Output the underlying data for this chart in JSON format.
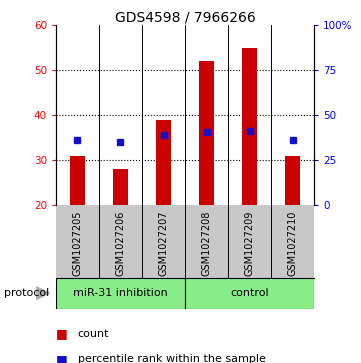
{
  "title": "GDS4598 / 7966266",
  "samples": [
    "GSM1027205",
    "GSM1027206",
    "GSM1027207",
    "GSM1027208",
    "GSM1027209",
    "GSM1027210"
  ],
  "counts": [
    31,
    28,
    39,
    52,
    55,
    31
  ],
  "percentile_ranks": [
    36,
    35,
    39,
    40.5,
    41,
    36
  ],
  "ylim_left": [
    20,
    60
  ],
  "ylim_right": [
    0,
    100
  ],
  "yticks_left": [
    20,
    30,
    40,
    50,
    60
  ],
  "yticks_right": [
    0,
    25,
    50,
    75,
    100
  ],
  "ytick_labels_right": [
    "0",
    "25",
    "50",
    "75",
    "100%"
  ],
  "bar_color": "#cc0000",
  "dot_color": "#1111cc",
  "label_area_color": "#c8c8c8",
  "protocol_color": "#88ee88",
  "group1_label": "miR-31 inhibition",
  "group2_label": "control",
  "protocol_label": "protocol",
  "legend_count_label": "count",
  "legend_percentile_label": "percentile rank within the sample",
  "bar_width": 0.35
}
